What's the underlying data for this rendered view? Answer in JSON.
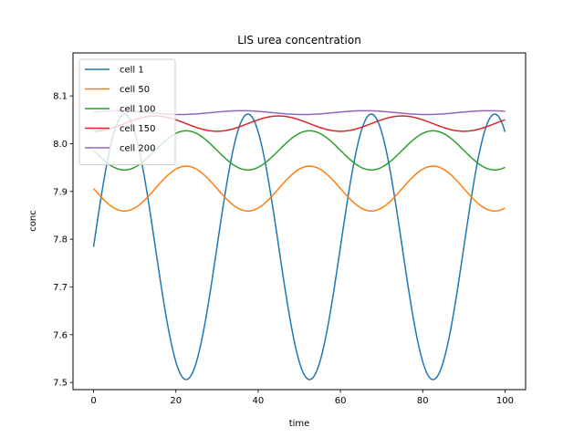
{
  "chart_data": {
    "type": "line",
    "title": "LIS urea concentration",
    "xlabel": "time",
    "ylabel": "conc",
    "xlim": [
      -5,
      105
    ],
    "ylim": [
      7.485,
      8.19
    ],
    "xticks": [
      0,
      20,
      40,
      60,
      80,
      100
    ],
    "yticks": [
      7.5,
      7.6,
      7.7,
      7.8,
      7.9,
      8.0,
      8.1
    ],
    "ytick_labels": [
      "7.5",
      "7.6",
      "7.7",
      "7.8",
      "7.9",
      "8.0",
      "8.1"
    ],
    "legend_position": "upper-left",
    "period": 30,
    "series": [
      {
        "name": "cell 1",
        "color": "#1f77b4",
        "mean": 7.784,
        "amplitude": 0.278,
        "peak_time": 7.5,
        "x_start": 0,
        "x_end": 100
      },
      {
        "name": "cell 50",
        "color": "#ff7f0e",
        "mean": 7.906,
        "amplitude": 0.047,
        "peak_time": 22.5,
        "x_start": 0,
        "x_end": 100
      },
      {
        "name": "cell 100",
        "color": "#2ca02c",
        "mean": 7.986,
        "amplitude": 0.041,
        "peak_time": 22.5,
        "x_start": 0,
        "x_end": 100
      },
      {
        "name": "cell 150",
        "color": "#d62728",
        "mean": 8.042,
        "amplitude": 0.016,
        "peak_time": 15,
        "x_start": 0,
        "x_end": 100
      },
      {
        "name": "cell 200",
        "color": "#9467bd",
        "mean": 8.065,
        "amplitude": 0.004,
        "peak_time": 6,
        "x_start": 0,
        "x_end": 100
      }
    ]
  }
}
